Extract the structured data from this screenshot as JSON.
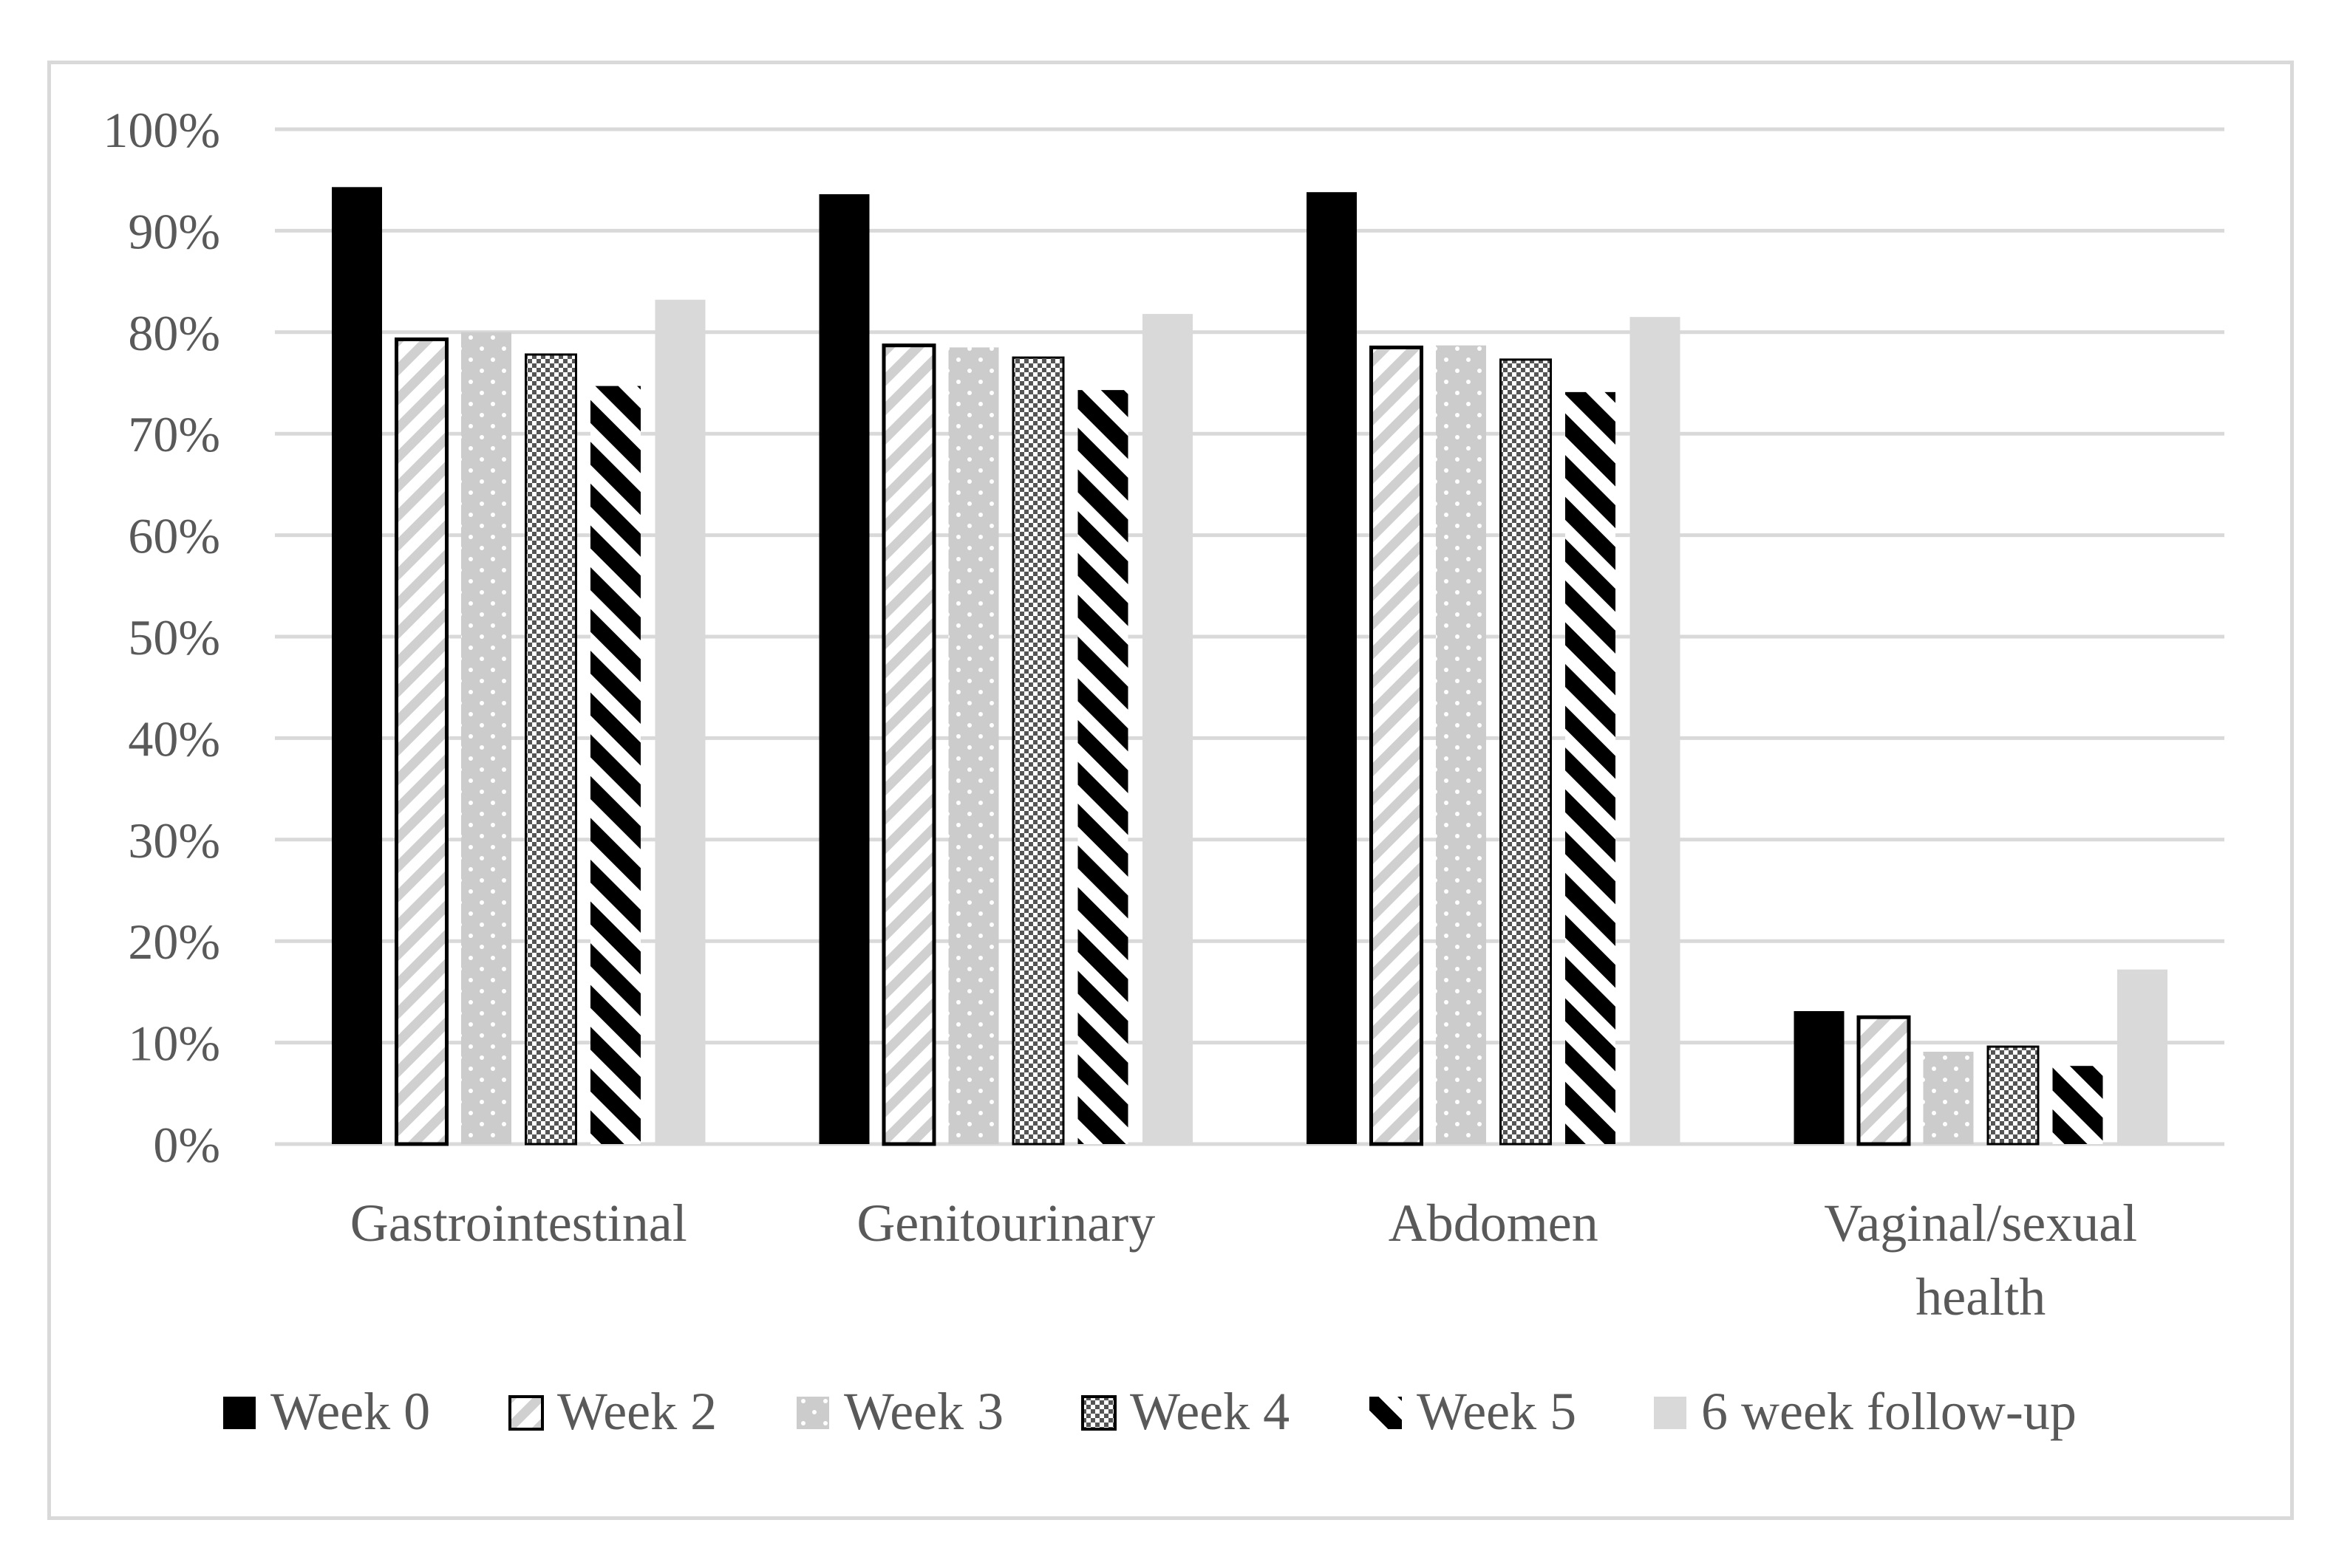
{
  "chart_data": {
    "type": "bar",
    "title": "",
    "xlabel": "",
    "ylabel": "",
    "ylim": [
      0,
      1
    ],
    "yticks": [
      0,
      0.1,
      0.2,
      0.3,
      0.4,
      0.5,
      0.6,
      0.7,
      0.8,
      0.9,
      1.0
    ],
    "ytick_labels": [
      "0%",
      "10%",
      "20%",
      "30%",
      "40%",
      "50%",
      "60%",
      "70%",
      "80%",
      "90%",
      "100%"
    ],
    "grid": true,
    "legend_position": "bottom",
    "categories": [
      [
        "Gastrointestinal"
      ],
      [
        "Genitourinary"
      ],
      [
        "Abdomen"
      ],
      [
        "Vaginal/sexual",
        "health"
      ]
    ],
    "series": [
      {
        "name": "Week 0",
        "pattern": "solid-black",
        "values": [
          0.943,
          0.936,
          0.938,
          0.131
        ]
      },
      {
        "name": "Week 2",
        "pattern": "diagonal-light",
        "values": [
          0.793,
          0.787,
          0.785,
          0.125
        ]
      },
      {
        "name": "Week 3",
        "pattern": "dotted-gray",
        "values": [
          0.8,
          0.785,
          0.787,
          0.091
        ]
      },
      {
        "name": "Week 4",
        "pattern": "checker",
        "values": [
          0.778,
          0.775,
          0.773,
          0.096
        ]
      },
      {
        "name": "Week 5",
        "pattern": "diagonal-bold",
        "values": [
          0.747,
          0.743,
          0.741,
          0.077
        ]
      },
      {
        "name": "6 week follow-up",
        "pattern": "solid-lightgray",
        "values": [
          0.832,
          0.818,
          0.815,
          0.172
        ]
      }
    ],
    "colors": {
      "black": "#000000",
      "light_gray": "#d9d9d9",
      "mid_gray": "#c8c8c8",
      "grid": "#d9d9d9",
      "text": "#595959"
    }
  }
}
